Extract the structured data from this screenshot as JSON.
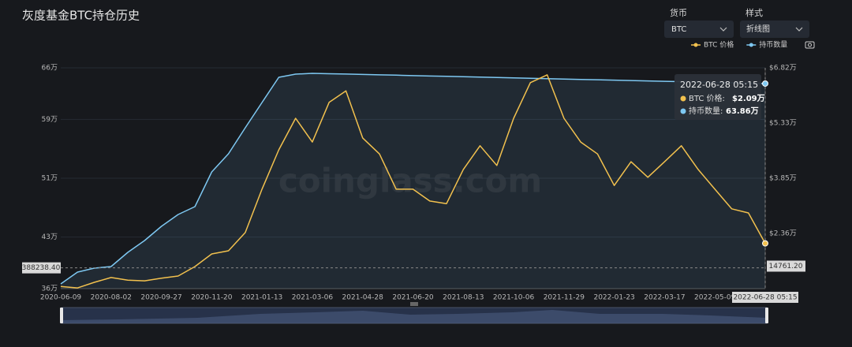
{
  "chart_data": {
    "type": "line",
    "title": "灰度基金BTC持仓历史",
    "controls": [
      {
        "label": "货币",
        "value": "BTC"
      },
      {
        "label": "样式",
        "value": "折线图"
      }
    ],
    "watermark": "coinglass.com",
    "categories": [
      "2020-06-09",
      null,
      null,
      "2020-08-02",
      null,
      null,
      "2020-09-27",
      null,
      null,
      "2020-11-20",
      null,
      null,
      "2021-01-13",
      null,
      null,
      "2021-03-06",
      null,
      null,
      "2021-04-28",
      null,
      null,
      "2021-06-20",
      null,
      null,
      "2021-08-13",
      null,
      null,
      "2021-10-06",
      null,
      null,
      "2021-11-29",
      null,
      null,
      "2022-01-23",
      null,
      null,
      "2022-03-17",
      null,
      null,
      "2022-05-09",
      null,
      null,
      "2022-06-28 05:15"
    ],
    "series": [
      {
        "name": "BTC 价格",
        "color": "#f2c14e",
        "axis": "y2",
        "values": [
          9300,
          8900,
          10400,
          11700,
          11000,
          10800,
          11500,
          12100,
          14650,
          18050,
          18900,
          23800,
          35500,
          46100,
          54600,
          48200,
          58900,
          62000,
          49300,
          45000,
          35500,
          35500,
          32300,
          31600,
          40800,
          47200,
          41900,
          54600,
          64200,
          66300,
          54600,
          48200,
          45000,
          36500,
          42900,
          38700,
          42900,
          47200,
          40800,
          35500,
          30200,
          29100,
          20900
        ]
      },
      {
        "name": "持币数量",
        "color": "#7ec8f2",
        "values": [
          366400,
          382500,
          387900,
          390000,
          409300,
          425400,
          444600,
          460700,
          471400,
          518600,
          543200,
          578600,
          612900,
          647100,
          651400,
          652500,
          652000,
          651500,
          651000,
          650500,
          650000,
          649400,
          648900,
          648400,
          647900,
          647400,
          646900,
          646400,
          645800,
          645300,
          644800,
          644300,
          643800,
          643300,
          642800,
          642200,
          641700,
          641200,
          640700,
          640200,
          639700,
          639100,
          638600
        ]
      }
    ],
    "ylim": [
      360000,
      660000
    ],
    "yticks": [
      {
        "value": 360000,
        "label": "36万"
      },
      {
        "value": 430000,
        "label": "43万"
      },
      {
        "value": 510000,
        "label": "51万"
      },
      {
        "value": 590000,
        "label": "59万"
      },
      {
        "value": 660000,
        "label": "66万"
      }
    ],
    "y2lim": [
      8700,
      68200
    ],
    "y2ticks": [
      {
        "value": 23600,
        "label": "$2.36万"
      },
      {
        "value": 38500,
        "label": "$3.85万"
      },
      {
        "value": 53300,
        "label": "$5.33万"
      },
      {
        "value": 68200,
        "label": "$6.82万"
      }
    ],
    "grid": true,
    "legend": "top-right",
    "axis_pointer": {
      "index": 42,
      "y": {
        "value": 388238.4,
        "label": "388238.40"
      },
      "y2": {
        "value": 14761.2,
        "label": "14761.20"
      }
    },
    "tooltip": {
      "items": [
        {
          "label": "BTC 价格:",
          "value_label": "$2.09万"
        },
        {
          "label": "持币数量:",
          "value_label": "63.86万"
        }
      ]
    }
  }
}
